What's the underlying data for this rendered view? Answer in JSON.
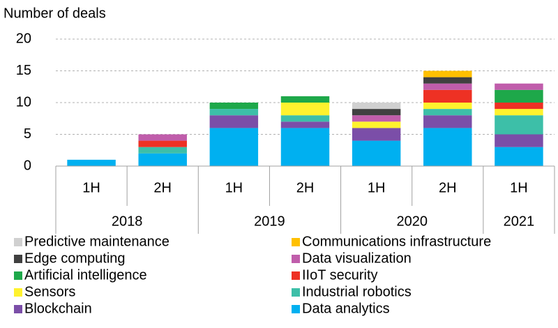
{
  "chart_data": {
    "type": "stacked_bar",
    "y_axis_label": "Number of deals",
    "categories": [
      "1H",
      "2H",
      "1H",
      "2H",
      "1H",
      "2H",
      "1H"
    ],
    "groups": [
      {
        "name": "2018",
        "count": 2
      },
      {
        "name": "2019",
        "count": 2
      },
      {
        "name": "2020",
        "count": 2
      },
      {
        "name": "2021",
        "count": 1
      }
    ],
    "ylim": [
      0,
      20
    ],
    "yticks": [
      0,
      5,
      10,
      15,
      20
    ],
    "grid": true,
    "series": [
      {
        "name": "Data analytics",
        "color": "#00b0f0",
        "values": [
          1,
          2,
          6,
          6,
          4,
          6,
          3
        ]
      },
      {
        "name": "Blockchain",
        "color": "#7b4ea8",
        "values": [
          0,
          0,
          2,
          1,
          2,
          2,
          2
        ]
      },
      {
        "name": "Industrial robotics",
        "color": "#3dbfa8",
        "values": [
          0,
          1,
          1,
          1,
          0,
          1,
          3
        ]
      },
      {
        "name": "Sensors",
        "color": "#fff22e",
        "values": [
          0,
          0,
          0,
          2,
          1,
          1,
          1
        ]
      },
      {
        "name": "IIoT security",
        "color": "#ee3124",
        "values": [
          0,
          1,
          0,
          0,
          0,
          2,
          1
        ]
      },
      {
        "name": "Artificial intelligence",
        "color": "#1ea84a",
        "values": [
          0,
          0,
          1,
          1,
          0,
          0,
          2
        ]
      },
      {
        "name": "Data visualization",
        "color": "#c05dab",
        "values": [
          0,
          1,
          0,
          0,
          1,
          1,
          1
        ]
      },
      {
        "name": "Edge computing",
        "color": "#404040",
        "values": [
          0,
          0,
          0,
          0,
          1,
          1,
          0
        ]
      },
      {
        "name": "Communications infrastructure",
        "color": "#ffc000",
        "values": [
          0,
          0,
          0,
          0,
          0,
          1,
          0
        ]
      },
      {
        "name": "Predictive maintenance",
        "color": "#d0d0d0",
        "values": [
          0,
          0,
          0,
          0,
          1,
          0,
          0
        ]
      }
    ]
  }
}
